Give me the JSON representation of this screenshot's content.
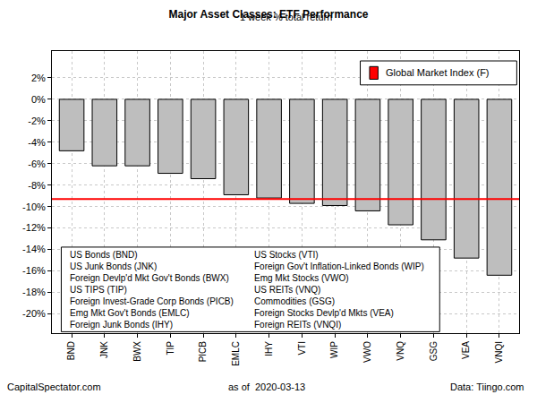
{
  "chart_data": {
    "type": "bar",
    "title": "Major Asset Classes: ETF Performance",
    "subtitle": "1 week % total return",
    "categories": [
      "BND",
      "JNK",
      "BWX",
      "TIP",
      "PICB",
      "EMLC",
      "IHY",
      "VTI",
      "WIP",
      "VWO",
      "VNQ",
      "GSG",
      "VEA",
      "VNQI"
    ],
    "values": [
      -4.8,
      -6.2,
      -6.2,
      -6.9,
      -7.4,
      -8.9,
      -9.2,
      -9.7,
      -9.9,
      -10.4,
      -11.7,
      -13.1,
      -14.8,
      -16.4
    ],
    "color": "#bebebe",
    "category_descriptions": [
      "US Bonds (BND)",
      "US Junk Bonds (JNK)",
      "Foreign Devlp'd Mkt Gov't Bonds (BWX)",
      "US TIPS (TIP)",
      "Foreign Invest-Grade Corp Bonds (PICB)",
      "Emg Mkt Gov't Bonds (EMLC)",
      "Foreign Junk Bonds (IHY)",
      "US Stocks (VTI)",
      "Foreign Gov't Inflation-Linked Bonds (WIP)",
      "Emg Mkt Stocks (VWO)",
      "US REITs (VNQ)",
      "Commodities (GSG)",
      "Foreign Stocks Devlp'd Mkts (VEA)",
      "Foreign REITs (VNQI)"
    ],
    "reference_line": {
      "name": "Global Market Index (F)",
      "value": -9.3,
      "color": "#ff0000"
    },
    "legend": "topright",
    "ylim": [
      -21.8,
      4.5
    ],
    "yticks": [
      {
        "value": 2,
        "label": "2%"
      },
      {
        "value": 0,
        "label": "0%"
      },
      {
        "value": -2,
        "label": "-2%"
      },
      {
        "value": -4,
        "label": "-4%"
      },
      {
        "value": -6,
        "label": "-6%"
      },
      {
        "value": -8,
        "label": "-8%"
      },
      {
        "value": -10,
        "label": "-10%"
      },
      {
        "value": -12,
        "label": "-12%"
      },
      {
        "value": -14,
        "label": "-14%"
      },
      {
        "value": -16,
        "label": "-16%"
      },
      {
        "value": -18,
        "label": "-18%"
      },
      {
        "value": -20,
        "label": "-20%"
      }
    ],
    "grid": true,
    "footer": [
      "CapitalSpectator.com",
      "as of  2020-03-13",
      "Data: Tiingo.com"
    ]
  }
}
